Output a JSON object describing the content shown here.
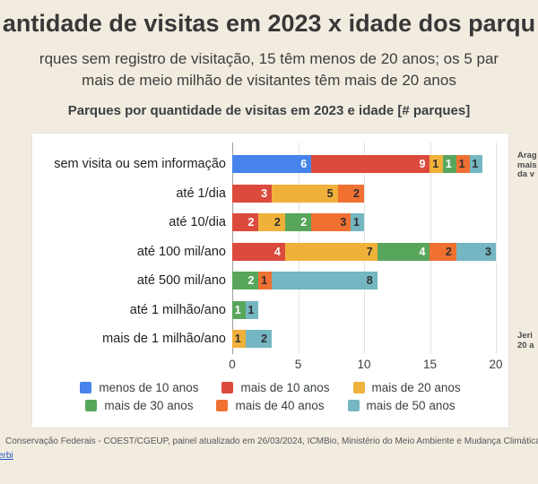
{
  "page": {
    "title": "antidade de visitas em 2023 x idade dos parqu",
    "subtitle_line1": "rques sem registro de visitação, 15 têm menos de 20 anos; os 5 par",
    "subtitle_line2": "mais de meio milhão de visitantes têm mais de 20 anos"
  },
  "chart_data": {
    "type": "bar",
    "orientation": "horizontal",
    "stacked": true,
    "title": "Parques por quantidade de visitas em 2023 e idade [# parques]",
    "categories": [
      "sem visita ou sem informação",
      "até 1/dia",
      "até 10/dia",
      "até 100 mil/ano",
      "até 500 mil/ano",
      "até 1 milhão/ano",
      "mais de 1 milhão/ano"
    ],
    "series": [
      {
        "name": "menos de 10 anos",
        "color": "#4683ea",
        "label_color": "#ffffff",
        "values": [
          6,
          0,
          0,
          0,
          0,
          0,
          0
        ]
      },
      {
        "name": "mais de 10 anos",
        "color": "#db4a3c",
        "label_color": "#ffffff",
        "values": [
          9,
          3,
          2,
          4,
          0,
          0,
          0
        ]
      },
      {
        "name": "mais de 20 anos",
        "color": "#f0b13b",
        "label_color": "#2e2e2e",
        "values": [
          1,
          5,
          2,
          7,
          0,
          0,
          1
        ]
      },
      {
        "name": "mais de 30 anos",
        "color": "#58a65c",
        "label_color": "#ffffff",
        "values": [
          1,
          0,
          2,
          4,
          2,
          1,
          0
        ]
      },
      {
        "name": "mais de 40 anos",
        "color": "#f07032",
        "label_color": "#2e2e2e",
        "values": [
          1,
          2,
          3,
          2,
          1,
          0,
          0
        ]
      },
      {
        "name": "mais de 50 anos",
        "color": "#74b6c1",
        "label_color": "#2e2e2e",
        "values": [
          1,
          0,
          1,
          3,
          8,
          1,
          2
        ]
      }
    ],
    "x_ticks": [
      0,
      5,
      10,
      15,
      20
    ],
    "xlim": [
      0,
      20
    ],
    "grid": true,
    "legend_position": "bottom",
    "value_labels": true
  },
  "annotations": {
    "right_top": [
      "Arag",
      "mais",
      "da v"
    ],
    "right_bottom": [
      "Jeri",
      "20 a"
    ]
  },
  "footer": {
    "line1": "Conservação Federais - COEST/CGEUP, painel atualizado em 26/03/2024, ICMBio, Ministério do Meio Ambiente e Mudança Climática",
    "link": "erbi"
  }
}
